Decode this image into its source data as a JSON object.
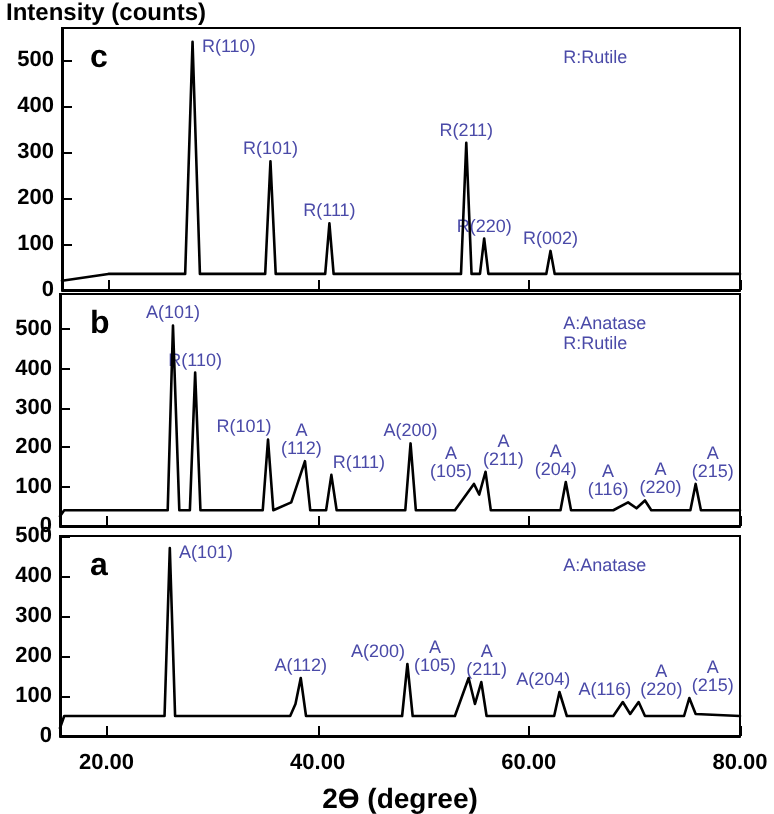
{
  "chart_data": [
    {
      "type": "line",
      "title": "c",
      "ylabel": "Intensity (counts)",
      "xlim": [
        15.6,
        80
      ],
      "ylim": [
        0,
        570
      ],
      "yticks": [
        0,
        100,
        200,
        300,
        400,
        500
      ],
      "xticks": [
        {
          "value": 20,
          "label": null
        },
        {
          "value": 40,
          "label": null
        },
        {
          "value": 60,
          "label": null
        },
        {
          "value": 80,
          "label": null
        }
      ],
      "tick_labels": "y",
      "grid": false,
      "marker": "none",
      "line_style": "solid",
      "series": [
        {
          "color": "#000000",
          "x": [
            15.6,
            20,
            25,
            27.3,
            28.0,
            28.7,
            32,
            34.9,
            35.4,
            35.9,
            38,
            40.6,
            41.0,
            41.4,
            46,
            53.5,
            54.0,
            54.5,
            55.3,
            55.7,
            56.1,
            60,
            61.6,
            62.0,
            62.4,
            70,
            80
          ],
          "values": [
            20,
            35,
            35,
            35,
            540,
            35,
            35,
            35,
            280,
            35,
            35,
            35,
            145,
            35,
            35,
            35,
            320,
            35,
            35,
            112,
            35,
            35,
            35,
            85,
            35,
            35,
            35
          ]
        }
      ],
      "annotations": [
        {
          "text": "R(110)",
          "x": 28.0,
          "y": 540
        },
        {
          "text": "R(101)",
          "x": 35.4,
          "y": 280
        },
        {
          "text": "R(111)",
          "x": 41.0,
          "y": 145
        },
        {
          "text": "R(211)",
          "x": 54.0,
          "y": 320
        },
        {
          "text": "R(220)",
          "x": 55.7,
          "y": 112
        },
        {
          "text": "R(002)",
          "x": 62.0,
          "y": 85
        },
        "R:Rutile"
      ]
    },
    {
      "type": "line",
      "title": "b",
      "xlim": [
        15.6,
        80
      ],
      "ylim": [
        0,
        590
      ],
      "yticks": [
        0,
        100,
        200,
        300,
        400,
        500
      ],
      "xticks": [
        {
          "value": 20,
          "label": null
        },
        {
          "value": 40,
          "label": null
        },
        {
          "value": 60,
          "label": null
        },
        {
          "value": 80,
          "label": null
        }
      ],
      "tick_labels": "y",
      "grid": false,
      "marker": "none",
      "line_style": "solid",
      "series": [
        {
          "color": "#000000",
          "x": [
            15.6,
            16,
            20,
            25.8,
            26.3,
            26.9,
            27.9,
            28.4,
            28.9,
            30,
            34.8,
            35.3,
            35.8,
            37.5,
            38.8,
            39.3,
            40.8,
            41.3,
            41.8,
            45,
            48.3,
            48.8,
            49.3,
            53,
            54.8,
            55.3,
            55.9,
            56.4,
            60,
            63.0,
            63.5,
            64.0,
            68,
            69.4,
            70.2,
            71.0,
            71.6,
            75.3,
            75.8,
            76.3,
            80
          ],
          "values": [
            25,
            40,
            40,
            40,
            510,
            40,
            40,
            390,
            40,
            40,
            40,
            220,
            40,
            60,
            165,
            40,
            40,
            130,
            40,
            40,
            40,
            210,
            40,
            40,
            107,
            80,
            138,
            40,
            40,
            40,
            112,
            40,
            40,
            60,
            45,
            65,
            40,
            40,
            107,
            40,
            40
          ]
        }
      ],
      "annotations": [
        {
          "text": "A(101)",
          "x": 26.3,
          "y": 510
        },
        {
          "text": "R(110)",
          "x": 28.4,
          "y": 390
        },
        {
          "text": "R(101)",
          "x": 35.3,
          "y": 220
        },
        {
          "text": "A\n(112)",
          "x": 38.8,
          "y": 165
        },
        {
          "text": "R(111)",
          "x": 41.3,
          "y": 130
        },
        {
          "text": "A(200)",
          "x": 48.8,
          "y": 210
        },
        {
          "text": "A\n(105)",
          "x": 54.8,
          "y": 107
        },
        {
          "text": "A\n(211)",
          "x": 55.9,
          "y": 138
        },
        {
          "text": "A\n(204)",
          "x": 63.5,
          "y": 112
        },
        {
          "text": "A\n(116)",
          "x": 69.4,
          "y": 60
        },
        {
          "text": "A\n(220)",
          "x": 71.0,
          "y": 65
        },
        {
          "text": "A\n(215)",
          "x": 75.8,
          "y": 107
        },
        "A:Anatase",
        "R:Rutile"
      ]
    },
    {
      "type": "line",
      "title": "a",
      "xlabel": "2ϴ (degree)",
      "xlim": [
        15.6,
        80
      ],
      "ylim": [
        0,
        500
      ],
      "yticks": [
        0,
        100,
        200,
        300,
        400,
        500
      ],
      "xticks": [
        {
          "value": 20,
          "label": "20.00"
        },
        {
          "value": 40,
          "label": "40.00"
        },
        {
          "value": 60,
          "label": "60.00"
        },
        {
          "value": 80,
          "label": "80.00"
        }
      ],
      "grid": false,
      "marker": "none",
      "line_style": "solid",
      "series": [
        {
          "color": "#000000",
          "x": [
            15.6,
            16,
            20,
            25.5,
            26.0,
            26.5,
            30,
            37.4,
            37.9,
            38.4,
            38.9,
            45,
            48.0,
            48.5,
            49.0,
            53,
            54.3,
            54.9,
            55.5,
            56.0,
            60,
            62.4,
            62.9,
            63.6,
            68,
            68.9,
            69.6,
            70.4,
            71.0,
            74.7,
            75.2,
            75.8,
            80
          ],
          "values": [
            20,
            50,
            50,
            50,
            470,
            50,
            50,
            50,
            80,
            145,
            50,
            50,
            50,
            180,
            50,
            50,
            145,
            80,
            135,
            50,
            50,
            50,
            110,
            50,
            50,
            85,
            55,
            85,
            50,
            50,
            95,
            55,
            50
          ]
        }
      ],
      "annotations": [
        {
          "text": "A(101)",
          "x": 26.0,
          "y": 470
        },
        {
          "text": "A(112)",
          "x": 38.4,
          "y": 145
        },
        {
          "text": "A(200)",
          "x": 48.5,
          "y": 180
        },
        {
          "text": "A\n(105)",
          "x": 54.3,
          "y": 145
        },
        {
          "text": "A\n(211)",
          "x": 55.5,
          "y": 135
        },
        {
          "text": "A(204)",
          "x": 62.9,
          "y": 110
        },
        {
          "text": "A(116)",
          "x": 68.9,
          "y": 85
        },
        {
          "text": "A\n(220)",
          "x": 70.4,
          "y": 85
        },
        {
          "text": "A\n(215)",
          "x": 75.2,
          "y": 95
        },
        "A:Anatase"
      ]
    }
  ]
}
